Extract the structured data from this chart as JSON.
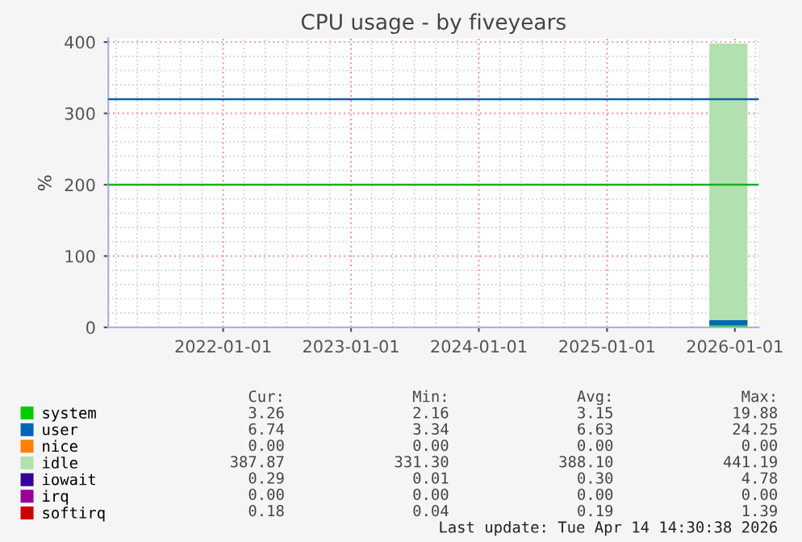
{
  "chart_data": {
    "type": "area",
    "stacked": true,
    "title": "CPU usage - by fiveyears",
    "ylabel": "%",
    "x": [
      "2025-10-20",
      "2025-12-01",
      "2026-01-10",
      "2026-02-06"
    ],
    "series": [
      {
        "name": "system",
        "color": "#00cc00",
        "values": [
          3,
          3,
          3,
          3
        ]
      },
      {
        "name": "user",
        "color": "#0066b3",
        "values": [
          7,
          7,
          7,
          7
        ]
      },
      {
        "name": "nice",
        "color": "#ff8000",
        "values": [
          null,
          null,
          null,
          null
        ]
      },
      {
        "name": "idle",
        "color": "#b3e0b0",
        "values": [
          388,
          388,
          388,
          388
        ]
      },
      {
        "name": "iowait",
        "color": "#330099",
        "values": [
          null,
          null,
          null,
          null
        ]
      },
      {
        "name": "irq",
        "color": "#990099",
        "values": [
          null,
          null,
          null,
          null
        ]
      },
      {
        "name": "softirq",
        "color": "#cc0000",
        "values": [
          null,
          null,
          null,
          null
        ]
      }
    ],
    "xlim": [
      "2021-02-07",
      "2026-03-10"
    ],
    "ylim": [
      0,
      405
    ],
    "xticks": [
      "2022-01-01",
      "2023-01-01",
      "2024-01-01",
      "2025-01-01",
      "2026-01-01"
    ],
    "yticks": [
      0,
      100,
      200,
      300,
      400
    ],
    "ref_lines": [
      {
        "axis": "y",
        "value": 320,
        "color": "#0f5f9f"
      },
      {
        "axis": "y",
        "value": 200,
        "color": "#22aa22"
      }
    ],
    "grid": true,
    "legend": "bottom",
    "annotations": [
      "Cur:",
      "Min:",
      "Avg:",
      "Max:",
      "3.26",
      "2.16",
      "3.15",
      "19.88",
      "6.74",
      "3.34",
      "6.63",
      "24.25",
      "0.00",
      "0.00",
      "0.00",
      "0.00",
      "387.87",
      "331.30",
      "388.10",
      "441.19",
      "0.29",
      "0.01",
      "0.30",
      "4.78",
      "0.00",
      "0.00",
      "0.00",
      "0.00",
      "0.18",
      "0.04",
      "0.19",
      "1.39",
      "Last update: Tue Apr 14 14:30:38 2026"
    ]
  }
}
